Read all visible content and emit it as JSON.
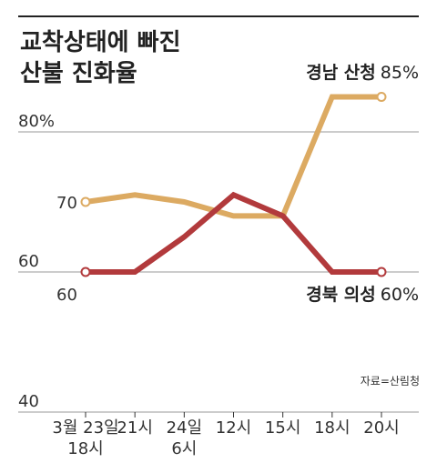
{
  "title_lines": [
    "교착상태에 빠진",
    "산불 진화율"
  ],
  "source": "자료=산림청",
  "colors": {
    "gyeongnam": "#dcaa62",
    "gyeongbuk": "#b23a3c",
    "top_rule": "#222222",
    "grid": "#999999",
    "text": "#222222"
  },
  "chart_data": {
    "type": "line",
    "x": [
      {
        "lines": [
          "3월 23일",
          "18시"
        ]
      },
      {
        "lines": [
          "21시"
        ]
      },
      {
        "lines": [
          "24일",
          "6시"
        ]
      },
      {
        "lines": [
          "12시"
        ]
      },
      {
        "lines": [
          "15시"
        ]
      },
      {
        "lines": [
          "18시"
        ]
      },
      {
        "lines": [
          "20시"
        ]
      }
    ],
    "series": [
      {
        "name": "경남 산청",
        "pct": "85%",
        "color": "#dcaa62",
        "points": [
          {
            "x": 0,
            "y": 70,
            "label": "70"
          },
          {
            "x": 1,
            "y": 71
          },
          {
            "x": 2,
            "y": 70
          },
          {
            "x": 3,
            "y": 68
          },
          {
            "x": 4,
            "y": 68
          },
          {
            "x": 5,
            "y": 85
          },
          {
            "x": 6,
            "y": 85
          }
        ]
      },
      {
        "name": "경북 의성",
        "pct": "60%",
        "color": "#b23a3c",
        "points": [
          {
            "x": 0,
            "y": 60,
            "label": "60"
          },
          {
            "x": 1,
            "y": 60
          },
          {
            "x": 2,
            "y": 65
          },
          {
            "x": 3,
            "y": 71
          },
          {
            "x": 4,
            "y": 68
          },
          {
            "x": 5,
            "y": 60
          },
          {
            "x": 6,
            "y": 60
          }
        ]
      }
    ],
    "y_ticks": [
      {
        "value": 80,
        "label": "80%"
      },
      {
        "value": 60,
        "label": "60"
      },
      {
        "value": 40,
        "label": "40"
      }
    ],
    "ylim": [
      40,
      90
    ],
    "grid": true,
    "xlabel": "",
    "ylabel": ""
  }
}
